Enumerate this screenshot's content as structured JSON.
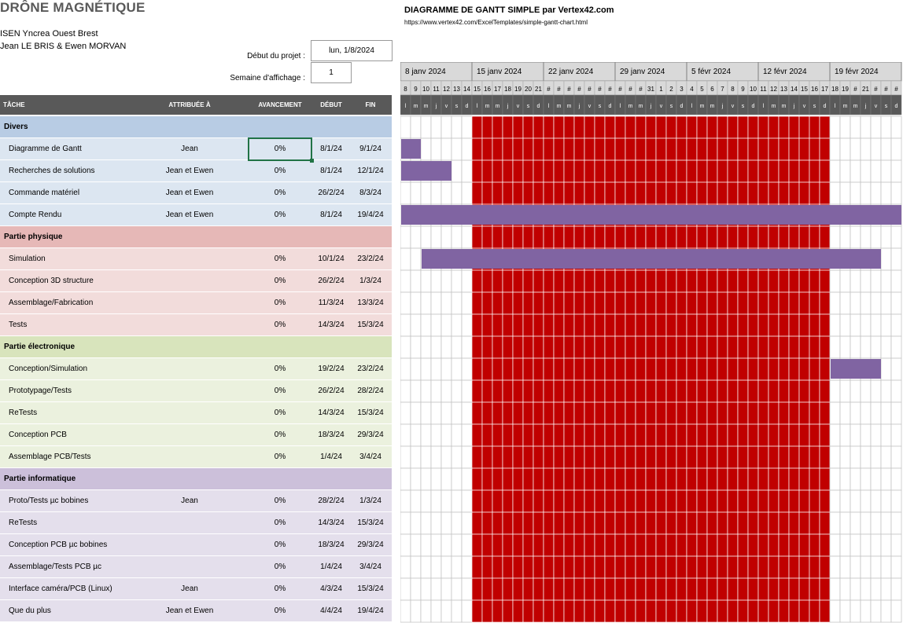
{
  "project_title": "DRÔNE MAGNÉTIQUE",
  "org_line1": "ISEN Yncrea Ouest Brest",
  "org_line2": "Jean LE BRIS & Ewen MORVAN",
  "start_label": "Début du projet :",
  "start_value": "lun, 1/8/2024",
  "week_label": "Semaine d'affichage :",
  "week_value": "1",
  "gantt_title": "DIAGRAMME DE GANTT SIMPLE par Vertex42.com",
  "gantt_url": "https://www.vertex42.com/ExcelTemplates/simple-gantt-chart.html",
  "columns": {
    "task": "TÂCHE",
    "assigned": "ATTRIBUÉE À",
    "progress": "AVANCEMENT",
    "start": "DÉBUT",
    "end": "FIN"
  },
  "weeks": [
    "8 janv 2024",
    "15 janv 2024",
    "22 janv 2024",
    "29 janv 2024",
    "5 févr 2024",
    "12 févr 2024",
    "19 févr 2024"
  ],
  "day_numbers": [
    "8",
    "9",
    "10",
    "11",
    "12",
    "13",
    "14",
    "15",
    "16",
    "17",
    "18",
    "19",
    "20",
    "21",
    "#",
    "#",
    "#",
    "#",
    "#",
    "#",
    "#",
    "#",
    "#",
    "#",
    "31",
    "1",
    "2",
    "3",
    "4",
    "5",
    "6",
    "7",
    "8",
    "9",
    "10",
    "11",
    "12",
    "13",
    "14",
    "15",
    "16",
    "17",
    "18",
    "19",
    "#",
    "21",
    "#",
    "#",
    "#"
  ],
  "day_letters": [
    "l",
    "m",
    "m",
    "j",
    "v",
    "s",
    "d"
  ],
  "colors": {
    "header_bg": "#595959",
    "weekend_red": "#c00000",
    "bar_purple": "#8064a2",
    "selection": "#217346"
  },
  "sections": [
    {
      "title": "Divers",
      "title_bg": "#b8cce4",
      "row_bg": "#dce6f1",
      "tasks": [
        {
          "name": "Diagramme de Gantt",
          "assigned": "Jean",
          "progress": "0%",
          "start": "8/1/24",
          "end": "9/1/24",
          "bar": [
            0,
            2
          ]
        },
        {
          "name": "Recherches de solutions",
          "assigned": "Jean et Ewen",
          "progress": "0%",
          "start": "8/1/24",
          "end": "12/1/24",
          "bar": [
            0,
            5
          ]
        },
        {
          "name": "Commande matériel",
          "assigned": "Jean et Ewen",
          "progress": "0%",
          "start": "26/2/24",
          "end": "8/3/24",
          "bar": null
        },
        {
          "name": "Compte Rendu",
          "assigned": "Jean et Ewen",
          "progress": "0%",
          "start": "8/1/24",
          "end": "19/4/24",
          "bar": [
            0,
            49
          ]
        }
      ]
    },
    {
      "title": "Partie physique",
      "title_bg": "#e6b8b7",
      "row_bg": "#f2dcdb",
      "tasks": [
        {
          "name": "Simulation",
          "assigned": "",
          "progress": "0%",
          "start": "10/1/24",
          "end": "23/2/24",
          "bar": [
            2,
            47
          ]
        },
        {
          "name": "Conception 3D structure",
          "assigned": "",
          "progress": "0%",
          "start": "26/2/24",
          "end": "1/3/24",
          "bar": null
        },
        {
          "name": "Assemblage/Fabrication",
          "assigned": "",
          "progress": "0%",
          "start": "11/3/24",
          "end": "13/3/24",
          "bar": null
        },
        {
          "name": "Tests",
          "assigned": "",
          "progress": "0%",
          "start": "14/3/24",
          "end": "15/3/24",
          "bar": null
        }
      ]
    },
    {
      "title": "Partie électronique",
      "title_bg": "#d8e4bc",
      "row_bg": "#ebf1de",
      "tasks": [
        {
          "name": "Conception/Simulation",
          "assigned": "",
          "progress": "0%",
          "start": "19/2/24",
          "end": "23/2/24",
          "bar": [
            42,
            47
          ]
        },
        {
          "name": "Prototypage/Tests",
          "assigned": "",
          "progress": "0%",
          "start": "26/2/24",
          "end": "28/2/24",
          "bar": null
        },
        {
          "name": "ReTests",
          "assigned": "",
          "progress": "0%",
          "start": "14/3/24",
          "end": "15/3/24",
          "bar": null
        },
        {
          "name": "Conception PCB",
          "assigned": "",
          "progress": "0%",
          "start": "18/3/24",
          "end": "29/3/24",
          "bar": null
        },
        {
          "name": "Assemblage PCB/Tests",
          "assigned": "",
          "progress": "0%",
          "start": "1/4/24",
          "end": "3/4/24",
          "bar": null
        }
      ]
    },
    {
      "title": "Partie informatique",
      "title_bg": "#ccc0da",
      "row_bg": "#e4dfec",
      "tasks": [
        {
          "name": "Proto/Tests µc bobines",
          "assigned": "Jean",
          "progress": "0%",
          "start": "28/2/24",
          "end": "1/3/24",
          "bar": null
        },
        {
          "name": "ReTests",
          "assigned": "",
          "progress": "0%",
          "start": "14/3/24",
          "end": "15/3/24",
          "bar": null
        },
        {
          "name": "Conception PCB µc bobines",
          "assigned": "",
          "progress": "0%",
          "start": "18/3/24",
          "end": "29/3/24",
          "bar": null
        },
        {
          "name": "Assemblage/Tests PCB µc",
          "assigned": "",
          "progress": "0%",
          "start": "1/4/24",
          "end": "3/4/24",
          "bar": null
        },
        {
          "name": "Interface caméra/PCB (Linux)",
          "assigned": "Jean",
          "progress": "0%",
          "start": "4/3/24",
          "end": "15/3/24",
          "bar": null
        },
        {
          "name": "Que du plus",
          "assigned": "Jean et Ewen",
          "progress": "0%",
          "start": "4/4/24",
          "end": "19/4/24",
          "bar": null
        }
      ]
    }
  ]
}
